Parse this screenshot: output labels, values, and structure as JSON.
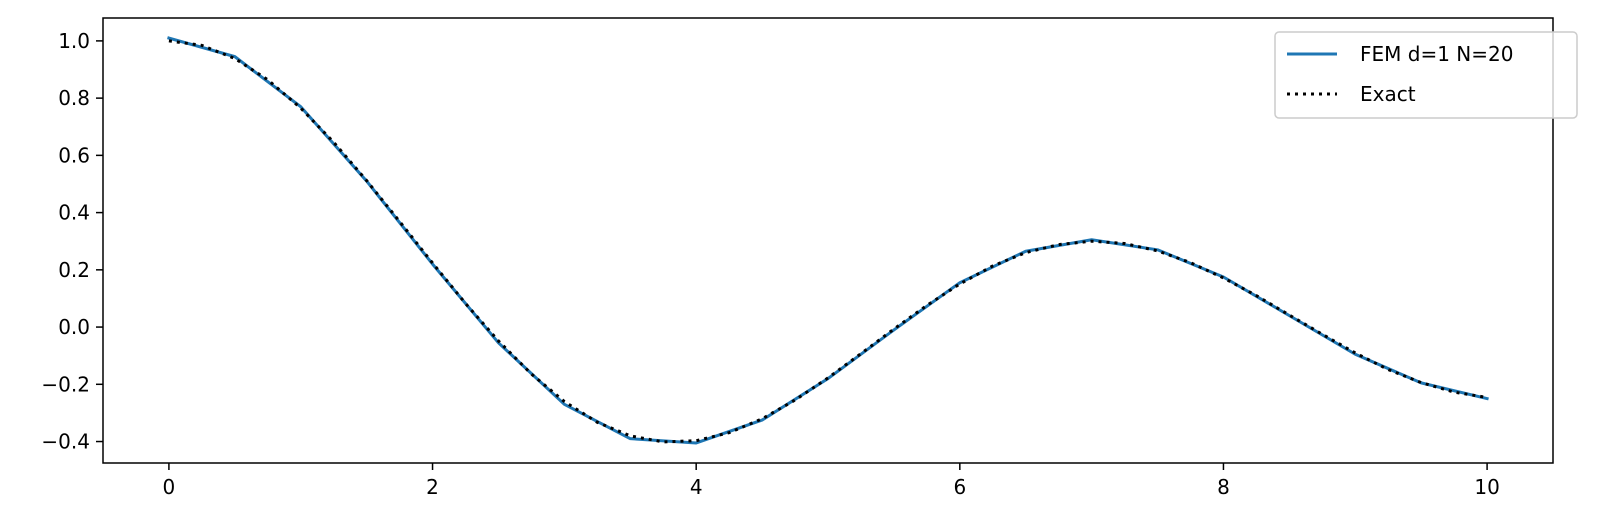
{
  "chart_data": {
    "type": "line",
    "title": "",
    "xlabel": "",
    "ylabel": "",
    "xlim": [
      -0.5,
      10.5
    ],
    "ylim": [
      -0.475,
      1.08
    ],
    "xticks": [
      0,
      2,
      4,
      6,
      8,
      10
    ],
    "xtick_labels": [
      "0",
      "2",
      "4",
      "6",
      "8",
      "10"
    ],
    "yticks": [
      -0.4,
      -0.2,
      0.0,
      0.2,
      0.4,
      0.6,
      0.8,
      1.0
    ],
    "ytick_labels": [
      "−0.4",
      "−0.2",
      "0.0",
      "0.2",
      "0.4",
      "0.6",
      "0.8",
      "1.0"
    ],
    "grid": false,
    "legend_position": "top-right",
    "series": [
      {
        "name": "FEM d=1 N=20",
        "color": "#1f77b4",
        "style": "solid",
        "x": [
          0,
          0.5,
          1,
          1.5,
          2,
          2.5,
          3,
          3.5,
          4,
          4.5,
          5,
          5.5,
          6,
          6.5,
          7,
          7.5,
          8,
          8.5,
          9,
          9.5,
          10
        ],
        "y": [
          1.01,
          0.945,
          0.77,
          0.51,
          0.22,
          -0.055,
          -0.27,
          -0.39,
          -0.405,
          -0.325,
          -0.18,
          -0.01,
          0.155,
          0.265,
          0.305,
          0.27,
          0.175,
          0.04,
          -0.095,
          -0.195,
          -0.25
        ]
      },
      {
        "name": "Exact",
        "color": "#000000",
        "style": "dotted",
        "x": [
          0,
          0.25,
          0.5,
          0.75,
          1,
          1.25,
          1.5,
          1.75,
          2,
          2.25,
          2.5,
          2.75,
          3,
          3.25,
          3.5,
          3.75,
          4,
          4.25,
          4.5,
          4.75,
          5,
          5.25,
          5.5,
          5.75,
          6,
          6.25,
          6.5,
          6.75,
          7,
          7.25,
          7.5,
          7.75,
          8,
          8.25,
          8.5,
          8.75,
          9,
          9.25,
          9.5,
          9.75,
          10
        ],
        "y": [
          1.0,
          0.9844,
          0.9385,
          0.8642,
          0.7652,
          0.6459,
          0.5118,
          0.369,
          0.2239,
          0.0827,
          -0.0484,
          -0.1641,
          -0.2601,
          -0.3328,
          -0.3801,
          -0.4014,
          -0.3971,
          -0.3691,
          -0.3205,
          -0.2551,
          -0.1776,
          -0.0929,
          -0.0068,
          0.0757,
          0.1506,
          0.2137,
          0.2601,
          0.2882,
          0.3001,
          0.2921,
          0.2663,
          0.2251,
          0.1717,
          0.1099,
          0.0419,
          -0.0252,
          -0.0903,
          -0.1486,
          -0.1939,
          -0.2275,
          -0.2459
        ]
      }
    ]
  }
}
